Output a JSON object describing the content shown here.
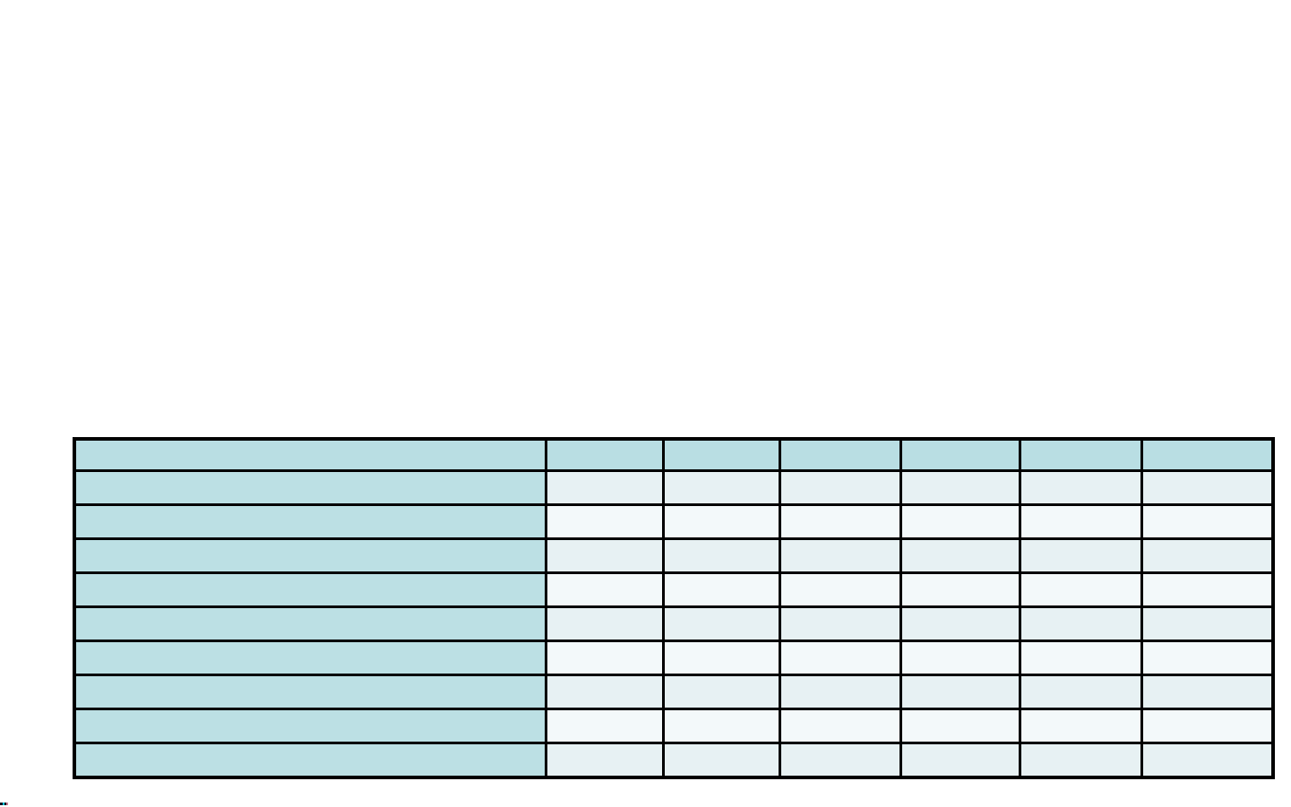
{
  "page": {
    "background": "#ffffff"
  },
  "table": {
    "type": "table",
    "description": "empty 10x7 grid table, teal header row and teal first column, alternating light banded body rows, thick black gridlines",
    "rows": 10,
    "columns": 7,
    "header": {
      "cells": [
        "",
        "",
        "",
        "",
        "",
        "",
        ""
      ]
    },
    "body": [
      {
        "cells": [
          "",
          "",
          "",
          "",
          "",
          "",
          ""
        ]
      },
      {
        "cells": [
          "",
          "",
          "",
          "",
          "",
          "",
          ""
        ]
      },
      {
        "cells": [
          "",
          "",
          "",
          "",
          "",
          "",
          ""
        ]
      },
      {
        "cells": [
          "",
          "",
          "",
          "",
          "",
          "",
          ""
        ]
      },
      {
        "cells": [
          "",
          "",
          "",
          "",
          "",
          "",
          ""
        ]
      },
      {
        "cells": [
          "",
          "",
          "",
          "",
          "",
          "",
          ""
        ]
      },
      {
        "cells": [
          "",
          "",
          "",
          "",
          "",
          "",
          ""
        ]
      },
      {
        "cells": [
          "",
          "",
          "",
          "",
          "",
          "",
          ""
        ]
      },
      {
        "cells": [
          "",
          "",
          "",
          "",
          "",
          "",
          ""
        ]
      }
    ],
    "colors": {
      "header_fill": "#b9dee3",
      "row_label_fill": "#bce0e4",
      "band_tinted_fill": "#e7f1f3",
      "band_light_fill": "#f3f9fa",
      "border": "#000000"
    }
  },
  "artifact": {
    "colors": {
      "dark": "#101022",
      "cyan": "#00c2d4",
      "pink": "#c57d93"
    }
  }
}
